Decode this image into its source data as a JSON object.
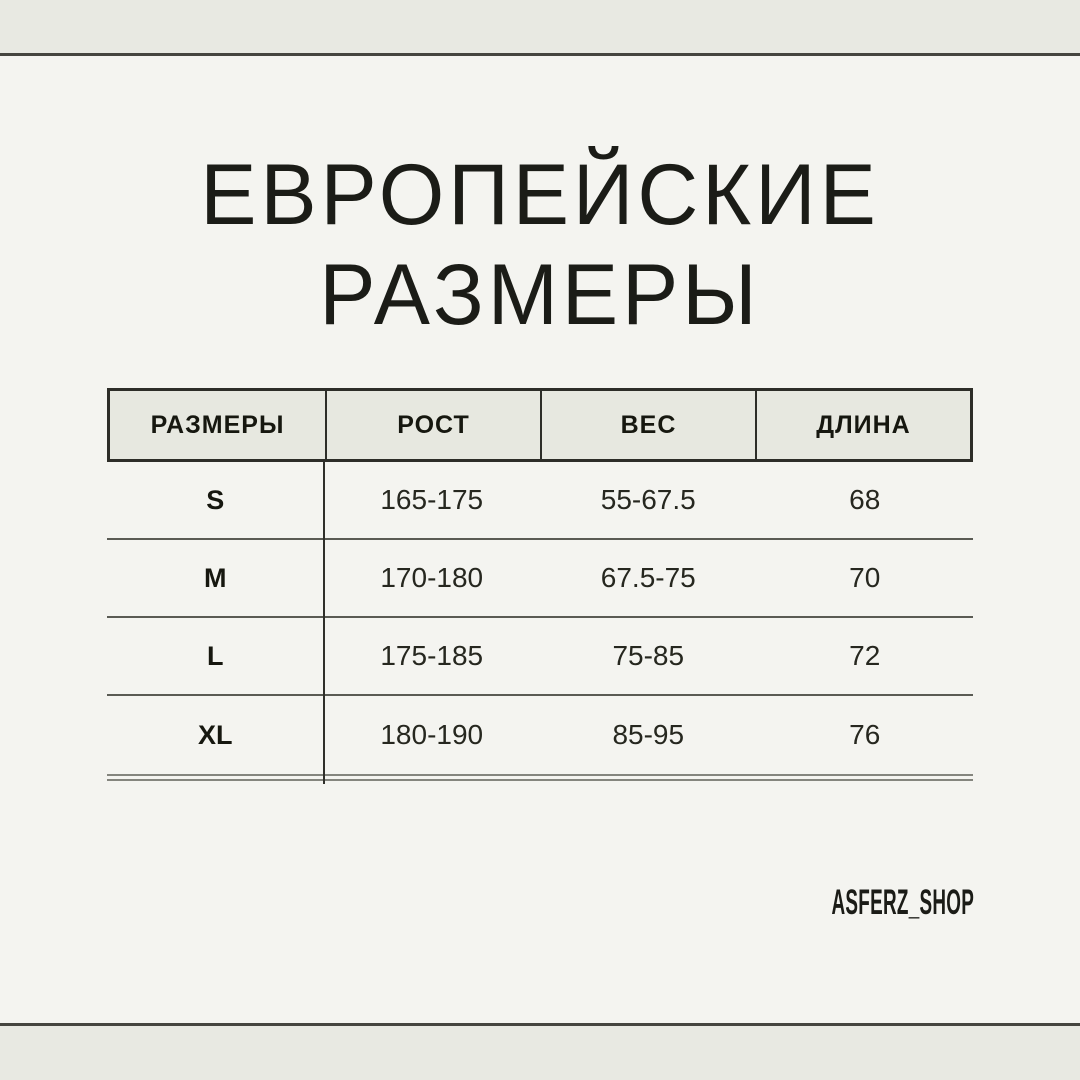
{
  "page": {
    "title_line1": "ЕВРОПЕЙСКИЕ",
    "title_line2": "РАЗМЕРЫ",
    "brand": "ASFERZ_SHOP"
  },
  "colors": {
    "band": "#e8e9e2",
    "background": "#f4f4f0",
    "rule": "#45453f",
    "header_background": "#e7e8e0",
    "header_border": "#2d2d28",
    "row_separator": "#5a5b54",
    "double_line": "#84857e",
    "text": "#1b1c17"
  },
  "size_table": {
    "columns": [
      "РАЗМЕРЫ",
      "РОСТ",
      "ВЕС",
      "ДЛИНА"
    ],
    "rows": [
      {
        "size": "S",
        "height": "165-175",
        "weight": "55-67.5",
        "length": "68"
      },
      {
        "size": "M",
        "height": "170-180",
        "weight": "67.5-75",
        "length": "70"
      },
      {
        "size": "L",
        "height": "175-185",
        "weight": "75-85",
        "length": "72"
      },
      {
        "size": "XL",
        "height": "180-190",
        "weight": "85-95",
        "length": "76"
      }
    ]
  },
  "chart_data": {
    "type": "table",
    "title": "ЕВРОПЕЙСКИЕ РАЗМЕРЫ",
    "columns": [
      "РАЗМЕРЫ",
      "РОСТ",
      "ВЕС",
      "ДЛИНА"
    ],
    "rows": [
      [
        "S",
        "165-175",
        "55-67.5",
        "68"
      ],
      [
        "M",
        "170-180",
        "67.5-75",
        "70"
      ],
      [
        "L",
        "175-185",
        "75-85",
        "72"
      ],
      [
        "XL",
        "180-190",
        "85-95",
        "76"
      ]
    ]
  }
}
